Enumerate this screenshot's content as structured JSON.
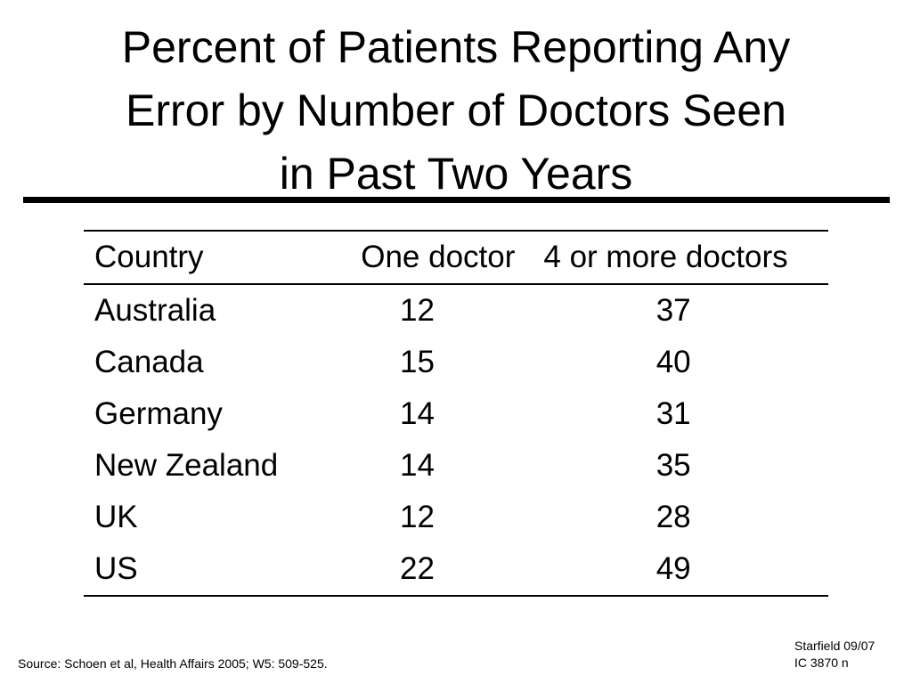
{
  "slide": {
    "title_lines": [
      "Percent of Patients Reporting Any",
      "Error by Number of Doctors Seen",
      "in Past Two Years"
    ]
  },
  "table": {
    "headers": [
      "Country",
      "One doctor",
      "4 or more doctors"
    ],
    "rows": [
      [
        "Australia",
        "12",
        "37"
      ],
      [
        "Canada",
        "15",
        "40"
      ],
      [
        "Germany",
        "14",
        "31"
      ],
      [
        "New Zealand",
        "14",
        "35"
      ],
      [
        "UK",
        "12",
        "28"
      ],
      [
        "US",
        "22",
        "49"
      ]
    ]
  },
  "footer": {
    "source": "Source: Schoen et al, Health Affairs 2005; W5: 509-525.",
    "meta_lines": [
      "Starfield 09/07",
      "IC 3870 n"
    ]
  }
}
